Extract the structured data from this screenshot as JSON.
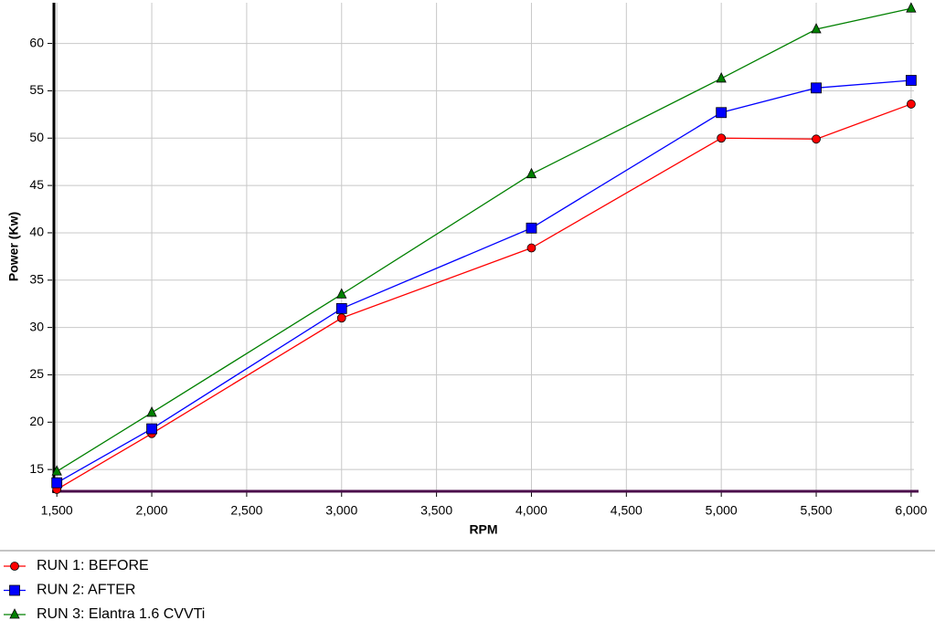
{
  "chart_data": {
    "type": "line",
    "y_label": "Power (Kw)",
    "x_label": "RPM",
    "x": [
      1500,
      2000,
      3000,
      4000,
      5000,
      5500,
      6000
    ],
    "series": [
      {
        "name": "RUN 1: BEFORE",
        "color": "#ff0000",
        "marker": "circle",
        "values": [
          12.9,
          18.8,
          31.0,
          38.4,
          50.0,
          49.9,
          53.6
        ]
      },
      {
        "name": "RUN 2: AFTER",
        "color": "#0000ff",
        "marker": "square",
        "values": [
          13.6,
          19.3,
          32.0,
          40.5,
          52.7,
          55.3,
          56.1
        ]
      },
      {
        "name": "RUN 3: Elantra 1.6 CVVTi",
        "color": "#008000",
        "marker": "triangle",
        "values": [
          14.8,
          21.0,
          33.5,
          46.2,
          56.3,
          61.5,
          63.7
        ]
      }
    ],
    "xlim": [
      1475,
      6015
    ],
    "ylim": [
      12.7,
      64.3
    ],
    "xticks": [
      {
        "value": 1500,
        "label": "1,500"
      },
      {
        "value": 2000,
        "label": "2,000"
      },
      {
        "value": 2500,
        "label": "2,500"
      },
      {
        "value": 3000,
        "label": "3,000"
      },
      {
        "value": 3500,
        "label": "3,500"
      },
      {
        "value": 4000,
        "label": "4,000"
      },
      {
        "value": 4500,
        "label": "4,500"
      },
      {
        "value": 5000,
        "label": "5,000"
      },
      {
        "value": 5500,
        "label": "5,500"
      },
      {
        "value": 6000,
        "label": "6,000"
      }
    ],
    "yticks": [
      15,
      20,
      25,
      30,
      35,
      40,
      45,
      50,
      55,
      60
    ],
    "grid": true,
    "legend": "bottom-left"
  }
}
